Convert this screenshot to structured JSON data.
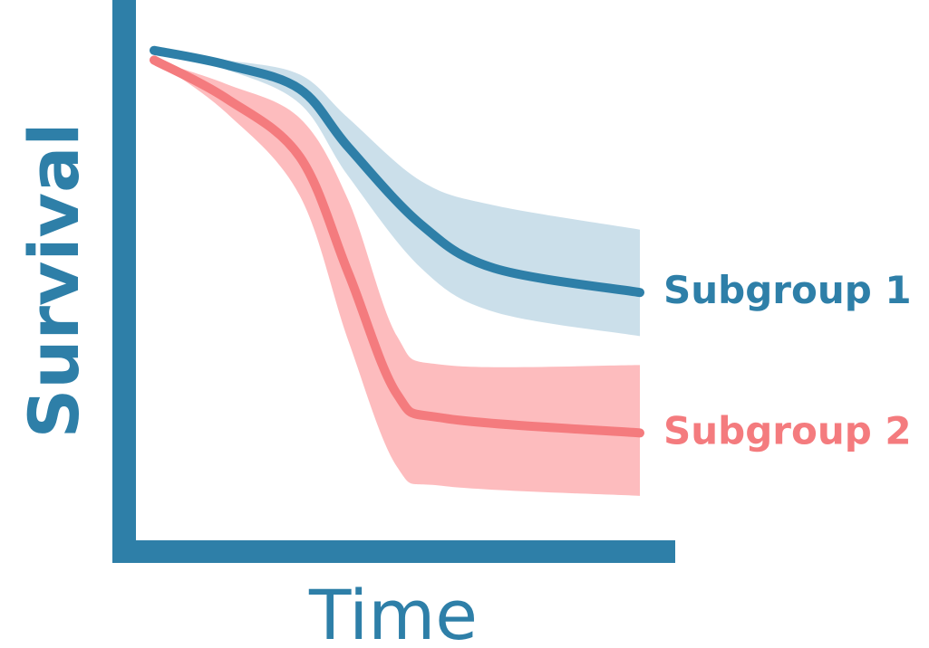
{
  "chart_data": {
    "type": "line",
    "xlabel": "Time",
    "ylabel": "Survival",
    "xlim": [
      0,
      1
    ],
    "ylim": [
      0,
      1
    ],
    "grid": false,
    "legend": "inline-right",
    "axis_color": "#2E7FA8",
    "series": [
      {
        "name": "Subgroup 1",
        "color": "#2E7FA8",
        "band_color": "#C8DDE9",
        "x": [
          0.0,
          0.15,
          0.3,
          0.4,
          0.55,
          0.7,
          1.0
        ],
        "y": [
          0.98,
          0.95,
          0.9,
          0.78,
          0.62,
          0.53,
          0.48
        ],
        "lower": [
          0.98,
          0.94,
          0.87,
          0.72,
          0.53,
          0.44,
          0.39
        ],
        "upper": [
          0.98,
          0.96,
          0.93,
          0.84,
          0.71,
          0.66,
          0.61
        ]
      },
      {
        "name": "Subgroup 2",
        "color": "#F47B7E",
        "band_color": "#FDB8BA",
        "x": [
          0.0,
          0.15,
          0.3,
          0.4,
          0.5,
          0.6,
          1.0
        ],
        "y": [
          0.96,
          0.88,
          0.76,
          0.52,
          0.27,
          0.22,
          0.19
        ],
        "lower": [
          0.96,
          0.85,
          0.68,
          0.38,
          0.12,
          0.08,
          0.06
        ],
        "upper": [
          0.96,
          0.91,
          0.84,
          0.67,
          0.39,
          0.33,
          0.33
        ]
      }
    ]
  }
}
